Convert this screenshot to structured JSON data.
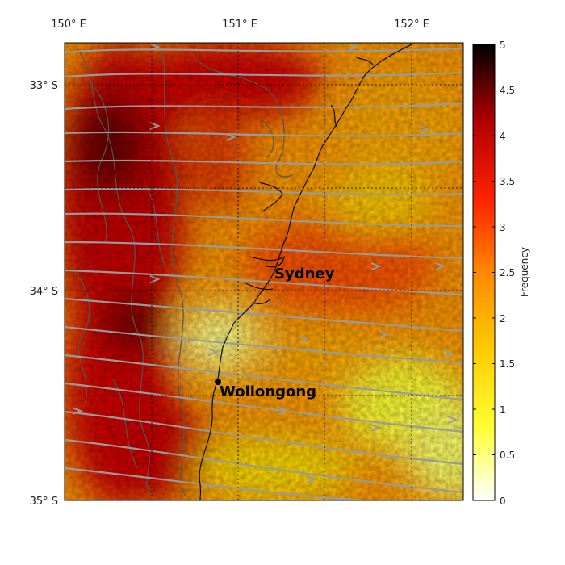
{
  "longitude_labels": [
    "150° E",
    "151° E",
    "152° E"
  ],
  "latitude_labels": [
    "33° S",
    "34° S",
    "35° S"
  ],
  "cities": [
    {
      "name": "Sydney"
    },
    {
      "name": "Wollongong"
    }
  ],
  "colorbar": {
    "title": "Frequency",
    "ticks": [
      "5",
      "4.5",
      "4",
      "3.5",
      "3",
      "2.5",
      "2",
      "1.5",
      "1",
      "0.5",
      "0"
    ],
    "min": 0,
    "max": 5,
    "colors": [
      "#ffffff",
      "#ffff33",
      "#ffcc00",
      "#ff8800",
      "#ff2200",
      "#b30000",
      "#000000"
    ]
  },
  "colors": {
    "coast": "#000000",
    "contour": "#555555",
    "streamline": "#9a9a9a",
    "grid": "#000000"
  }
}
